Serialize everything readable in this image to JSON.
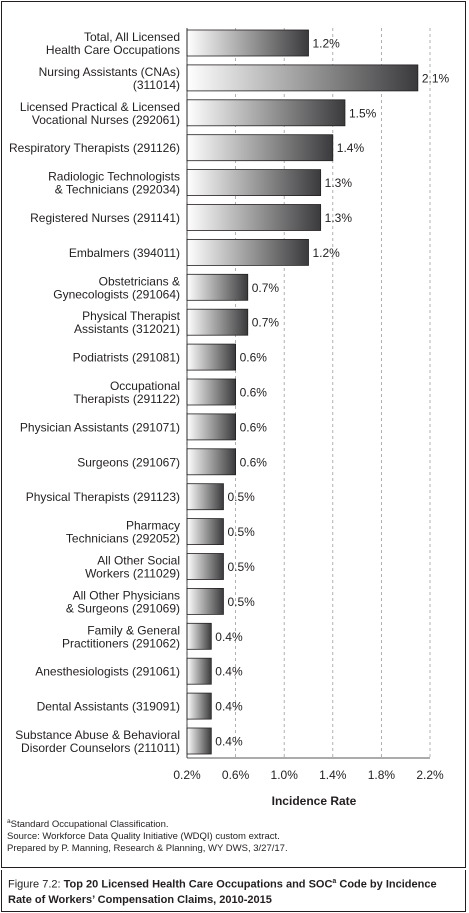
{
  "chart_data": {
    "type": "bar",
    "orientation": "horizontal",
    "categories": [
      "Total, All Licensed\nHealth Care Occupations",
      "Nursing Assistants (CNAs)\n(311014)",
      "Licensed Practical & Licensed\nVocational Nurses (292061)",
      "Respiratory Therapists (291126)",
      "Radiologic Technologists\n& Technicians (292034)",
      "Registered Nurses (291141)",
      "Embalmers (394011)",
      "Obstetricians &\nGynecologists (291064)",
      "Physical Therapist\nAssistants (312021)",
      "Podiatrists (291081)",
      "Occupational\nTherapists (291122)",
      "Physician Assistants (291071)",
      "Surgeons (291067)",
      "Physical Therapists (291123)",
      "Pharmacy\nTechnicians (292052)",
      "All Other Social\nWorkers (211029)",
      "All Other Physicians\n& Surgeons (291069)",
      "Family & General\nPractitioners (291062)",
      "Anesthesiologists (291061)",
      "Dental Assistants (319091)",
      "Substance Abuse & Behavioral\nDisorder Counselors (211011)"
    ],
    "values": [
      1.2,
      2.1,
      1.5,
      1.4,
      1.3,
      1.3,
      1.2,
      0.7,
      0.7,
      0.6,
      0.6,
      0.6,
      0.6,
      0.5,
      0.5,
      0.5,
      0.5,
      0.4,
      0.4,
      0.4,
      0.4
    ],
    "value_labels": [
      "1.2%",
      "2.1%",
      "1.5%",
      "1.4%",
      "1.3%",
      "1.3%",
      "1.2%",
      "0.7%",
      "0.7%",
      "0.6%",
      "0.6%",
      "0.6%",
      "0.6%",
      "0.5%",
      "0.5%",
      "0.5%",
      "0.5%",
      "0.4%",
      "0.4%",
      "0.4%",
      "0.4%"
    ],
    "xlabel": "Incidence Rate",
    "xlim": [
      0.2,
      2.2
    ],
    "xticks": [
      0.2,
      0.6,
      1.0,
      1.4,
      1.8,
      2.2
    ],
    "xtick_labels": [
      "0.2%",
      "0.6%",
      "1.0%",
      "1.4%",
      "1.8%",
      "2.2%"
    ],
    "grid": "vertical-dashed"
  },
  "footnotes": {
    "soc_marker": "a",
    "soc_text": "Standard Occupational Classification.",
    "source": "Source: Workforce Data Quality Initiative (WDQI) custom extract.",
    "prepared": "Prepared by P. Manning, Research & Planning, WY DWS, 3/27/17."
  },
  "caption": {
    "label": "Figure 7.2:",
    "title_part1": "Top 20 Licensed Health Care Occupations and SOC",
    "marker": "a",
    "title_part2": " Code by Incidence Rate of Workers’ Compensation Claims, 2010-2015"
  },
  "colors": {
    "bar_dark": "#3a3a3c",
    "bar_light": "#ffffff",
    "text": "#231f20",
    "grid": "#9d9d9d"
  }
}
